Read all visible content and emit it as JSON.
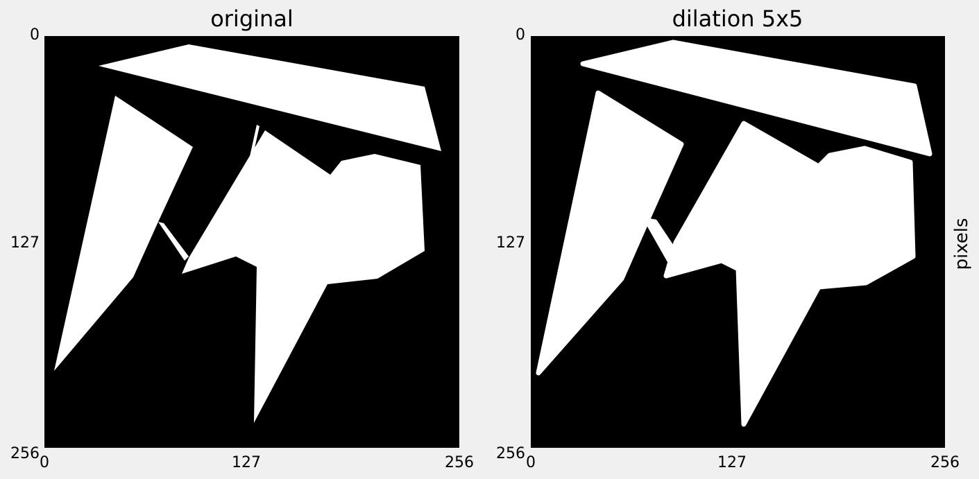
{
  "panels": [
    {
      "title": "original",
      "x_ticks": [
        "0",
        "127",
        "256"
      ],
      "y_ticks": [
        "0",
        "127",
        "256"
      ]
    },
    {
      "title": "dilation 5x5",
      "x_ticks": [
        "0",
        "127",
        "256"
      ],
      "y_ticks": [
        "0",
        "127",
        "256"
      ]
    }
  ],
  "side_label": "pixels",
  "colors": {
    "background": "#f0f0f0",
    "image_background": "#000000",
    "foreground": "#ffffff"
  }
}
